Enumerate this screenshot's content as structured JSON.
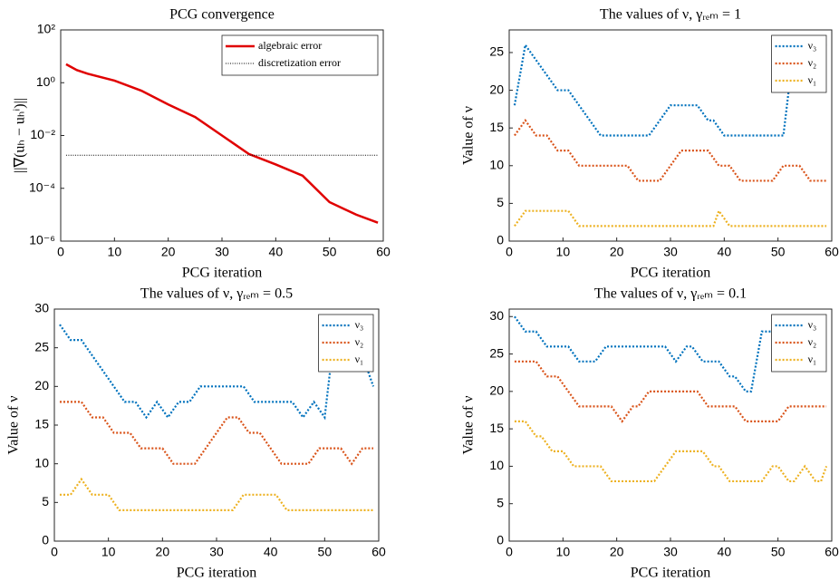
{
  "chart_data": [
    {
      "type": "line",
      "title": "PCG convergence",
      "xlabel": "PCG iteration",
      "ylabel": "||∇(uₕ − uₕⁱ)||",
      "log_y": true,
      "legend": "upper right",
      "xlim": [
        0,
        60
      ],
      "xticks": [
        0,
        10,
        20,
        30,
        40,
        50,
        60
      ],
      "ylim": [
        1e-06,
        100
      ],
      "yticks": [
        {
          "value": 1e-06,
          "label": "10⁻⁶"
        },
        {
          "value": 0.0001,
          "label": "10⁻⁴"
        },
        {
          "value": 0.01,
          "label": "10⁻²"
        },
        {
          "value": 1,
          "label": "10⁰"
        },
        {
          "value": 100,
          "label": "10²"
        }
      ],
      "series": [
        {
          "name": "algebraic error",
          "color": "#e00000",
          "linestyle": "solid",
          "x": [
            1,
            3,
            5,
            10,
            15,
            20,
            25,
            30,
            35,
            40,
            45,
            50,
            55,
            59
          ],
          "values": [
            5,
            3,
            2.2,
            1.2,
            0.5,
            0.15,
            0.05,
            0.01,
            0.002,
            0.0008,
            0.0003,
            3e-05,
            1e-05,
            5e-06
          ]
        },
        {
          "name": "discretization error",
          "color": "#000000",
          "linestyle": "thin-dotted",
          "x": [
            1,
            59
          ],
          "values": [
            0.0018,
            0.0018
          ]
        }
      ]
    },
    {
      "type": "line",
      "title": "The values of ν, γᵣₑₘ = 1",
      "xlabel": "PCG iteration",
      "ylabel": "Value of ν",
      "legend": "upper right",
      "xlim": [
        0,
        60
      ],
      "xticks": [
        0,
        10,
        20,
        30,
        40,
        50,
        60
      ],
      "ylim": [
        0,
        28
      ],
      "yticks": [
        0,
        5,
        10,
        15,
        20,
        25
      ],
      "x": [
        1,
        2,
        3,
        4,
        5,
        6,
        7,
        8,
        9,
        10,
        11,
        12,
        13,
        14,
        15,
        16,
        17,
        18,
        19,
        20,
        21,
        22,
        23,
        24,
        25,
        26,
        27,
        28,
        29,
        30,
        31,
        32,
        33,
        34,
        35,
        36,
        37,
        38,
        39,
        40,
        41,
        42,
        43,
        44,
        45,
        46,
        47,
        48,
        49,
        50,
        51,
        52,
        53,
        54,
        55,
        56,
        57,
        58,
        59
      ],
      "series": [
        {
          "name": "ν₃",
          "color": "#0072bd",
          "linestyle": "dotted",
          "values": [
            18,
            22,
            26,
            25,
            24,
            23,
            22,
            21,
            20,
            20,
            20,
            19,
            18,
            17,
            16,
            15,
            14,
            14,
            14,
            14,
            14,
            14,
            14,
            14,
            14,
            14,
            15,
            16,
            17,
            18,
            18,
            18,
            18,
            18,
            18,
            17,
            16,
            16,
            15,
            14,
            14,
            14,
            14,
            14,
            14,
            14,
            14,
            14,
            14,
            14,
            14,
            20,
            24,
            26,
            26,
            26,
            26,
            26,
            26
          ]
        },
        {
          "name": "ν₂",
          "color": "#d95319",
          "linestyle": "dotted",
          "values": [
            14,
            15,
            16,
            15,
            14,
            14,
            14,
            13,
            12,
            12,
            12,
            11,
            10,
            10,
            10,
            10,
            10,
            10,
            10,
            10,
            10,
            10,
            9,
            8,
            8,
            8,
            8,
            8,
            9,
            10,
            11,
            12,
            12,
            12,
            12,
            12,
            12,
            11,
            10,
            10,
            10,
            9,
            8,
            8,
            8,
            8,
            8,
            8,
            8,
            9,
            10,
            10,
            10,
            10,
            9,
            8,
            8,
            8,
            8
          ]
        },
        {
          "name": "ν₁",
          "color": "#edb120",
          "linestyle": "dotted",
          "values": [
            2,
            3,
            4,
            4,
            4,
            4,
            4,
            4,
            4,
            4,
            4,
            3,
            2,
            2,
            2,
            2,
            2,
            2,
            2,
            2,
            2,
            2,
            2,
            2,
            2,
            2,
            2,
            2,
            2,
            2,
            2,
            2,
            2,
            2,
            2,
            2,
            2,
            2,
            4,
            3,
            2,
            2,
            2,
            2,
            2,
            2,
            2,
            2,
            2,
            2,
            2,
            2,
            2,
            2,
            2,
            2,
            2,
            2,
            2
          ]
        }
      ]
    },
    {
      "type": "line",
      "title": "The values of ν, γᵣₑₘ = 0.5",
      "xlabel": "PCG iteration",
      "ylabel": "Value of ν",
      "legend": "upper right",
      "xlim": [
        0,
        60
      ],
      "xticks": [
        0,
        10,
        20,
        30,
        40,
        50,
        60
      ],
      "ylim": [
        0,
        30
      ],
      "yticks": [
        0,
        5,
        10,
        15,
        20,
        25,
        30
      ],
      "x": [
        1,
        2,
        3,
        4,
        5,
        6,
        7,
        8,
        9,
        10,
        11,
        12,
        13,
        14,
        15,
        16,
        17,
        18,
        19,
        20,
        21,
        22,
        23,
        24,
        25,
        26,
        27,
        28,
        29,
        30,
        31,
        32,
        33,
        34,
        35,
        36,
        37,
        38,
        39,
        40,
        41,
        42,
        43,
        44,
        45,
        46,
        47,
        48,
        49,
        50,
        51,
        52,
        53,
        54,
        55,
        56,
        57,
        58,
        59
      ],
      "series": [
        {
          "name": "ν₃",
          "color": "#0072bd",
          "linestyle": "dotted",
          "values": [
            28,
            27,
            26,
            26,
            26,
            25,
            24,
            23,
            22,
            21,
            20,
            19,
            18,
            18,
            18,
            17,
            16,
            17,
            18,
            17,
            16,
            17,
            18,
            18,
            18,
            19,
            20,
            20,
            20,
            20,
            20,
            20,
            20,
            20,
            20,
            19,
            18,
            18,
            18,
            18,
            18,
            18,
            18,
            18,
            17,
            16,
            17,
            18,
            17,
            16,
            22,
            24,
            25,
            25,
            25,
            25,
            25,
            22,
            20
          ]
        },
        {
          "name": "ν₂",
          "color": "#d95319",
          "linestyle": "dotted",
          "values": [
            18,
            18,
            18,
            18,
            18,
            17,
            16,
            16,
            16,
            15,
            14,
            14,
            14,
            14,
            13,
            12,
            12,
            12,
            12,
            12,
            11,
            10,
            10,
            10,
            10,
            10,
            11,
            12,
            13,
            14,
            15,
            16,
            16,
            16,
            15,
            14,
            14,
            14,
            13,
            12,
            11,
            10,
            10,
            10,
            10,
            10,
            10,
            11,
            12,
            12,
            12,
            12,
            12,
            11,
            10,
            11,
            12,
            12,
            12
          ]
        },
        {
          "name": "ν₁",
          "color": "#edb120",
          "linestyle": "dotted",
          "values": [
            6,
            6,
            6,
            7,
            8,
            7,
            6,
            6,
            6,
            6,
            5,
            4,
            4,
            4,
            4,
            4,
            4,
            4,
            4,
            4,
            4,
            4,
            4,
            4,
            4,
            4,
            4,
            4,
            4,
            4,
            4,
            4,
            4,
            5,
            6,
            6,
            6,
            6,
            6,
            6,
            6,
            5,
            4,
            4,
            4,
            4,
            4,
            4,
            4,
            4,
            4,
            4,
            4,
            4,
            4,
            4,
            4,
            4,
            4
          ]
        }
      ]
    },
    {
      "type": "line",
      "title": "The values of ν, γᵣₑₘ = 0.1",
      "xlabel": "PCG iteration",
      "ylabel": "Value of ν",
      "legend": "upper right",
      "xlim": [
        0,
        60
      ],
      "xticks": [
        0,
        10,
        20,
        30,
        40,
        50,
        60
      ],
      "ylim": [
        0,
        31
      ],
      "yticks": [
        0,
        5,
        10,
        15,
        20,
        25,
        30
      ],
      "x": [
        1,
        2,
        3,
        4,
        5,
        6,
        7,
        8,
        9,
        10,
        11,
        12,
        13,
        14,
        15,
        16,
        17,
        18,
        19,
        20,
        21,
        22,
        23,
        24,
        25,
        26,
        27,
        28,
        29,
        30,
        31,
        32,
        33,
        34,
        35,
        36,
        37,
        38,
        39,
        40,
        41,
        42,
        43,
        44,
        45,
        46,
        47,
        48,
        49,
        50,
        51,
        52,
        53,
        54,
        55,
        56,
        57,
        58,
        59
      ],
      "series": [
        {
          "name": "ν₃",
          "color": "#0072bd",
          "linestyle": "dotted",
          "values": [
            30,
            29,
            28,
            28,
            28,
            27,
            26,
            26,
            26,
            26,
            26,
            25,
            24,
            24,
            24,
            24,
            25,
            26,
            26,
            26,
            26,
            26,
            26,
            26,
            26,
            26,
            26,
            26,
            26,
            25,
            24,
            25,
            26,
            26,
            25,
            24,
            24,
            24,
            24,
            23,
            22,
            22,
            21,
            20,
            20,
            24,
            28,
            28,
            28,
            28,
            28,
            28,
            28,
            28,
            28,
            28,
            28,
            28,
            28
          ]
        },
        {
          "name": "ν₂",
          "color": "#d95319",
          "linestyle": "dotted",
          "values": [
            24,
            24,
            24,
            24,
            24,
            23,
            22,
            22,
            22,
            21,
            20,
            19,
            18,
            18,
            18,
            18,
            18,
            18,
            18,
            17,
            16,
            17,
            18,
            18,
            19,
            20,
            20,
            20,
            20,
            20,
            20,
            20,
            20,
            20,
            20,
            19,
            18,
            18,
            18,
            18,
            18,
            18,
            17,
            16,
            16,
            16,
            16,
            16,
            16,
            16,
            17,
            18,
            18,
            18,
            18,
            18,
            18,
            18,
            18
          ]
        },
        {
          "name": "ν₁",
          "color": "#edb120",
          "linestyle": "dotted",
          "values": [
            16,
            16,
            16,
            15,
            14,
            14,
            13,
            12,
            12,
            12,
            11,
            10,
            10,
            10,
            10,
            10,
            10,
            9,
            8,
            8,
            8,
            8,
            8,
            8,
            8,
            8,
            8,
            9,
            10,
            11,
            12,
            12,
            12,
            12,
            12,
            12,
            11,
            10,
            10,
            9,
            8,
            8,
            8,
            8,
            8,
            8,
            8,
            9,
            10,
            10,
            9,
            8,
            8,
            9,
            10,
            9,
            8,
            8,
            10
          ]
        }
      ]
    }
  ]
}
